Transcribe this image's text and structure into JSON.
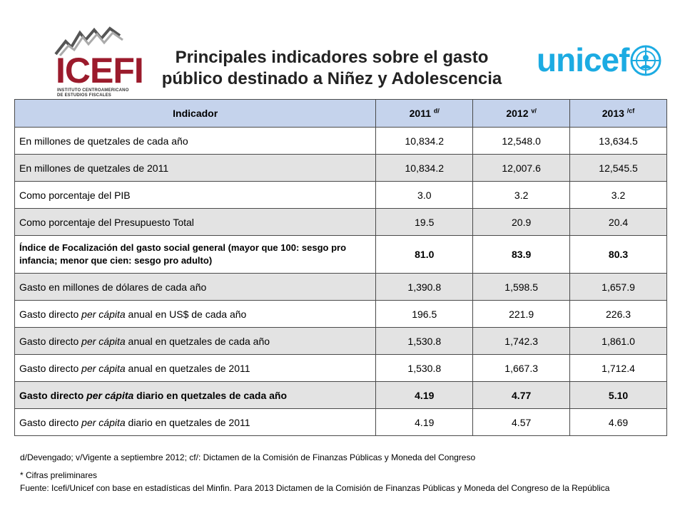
{
  "title": {
    "line1": "Principales indicadores sobre el gasto",
    "line2": "público destinado a Niñez y Adolescencia"
  },
  "logos": {
    "icefi_word": "ICEFI",
    "icefi_sub_line1": "INSTITUTO CENTROAMERICANO",
    "icefi_sub_line2": "DE ESTUDIOS FISCALES",
    "unicef_word": "unicef",
    "icefi_color": "#9b1b2c",
    "unicef_color": "#1cabe2"
  },
  "table": {
    "header": {
      "indicator": "Indicador",
      "y2011": "2011",
      "y2011_sup": "d/",
      "y2012": "2012",
      "y2012_sup": "v/",
      "y2013": "2013",
      "y2013_sup": "/cf"
    },
    "rows": [
      {
        "pre": "En millones de quetzales de cada año",
        "v2011": "10,834.2",
        "v2012": "12,548.0",
        "v2013": "13,634.5"
      },
      {
        "pre": "En millones de quetzales de 2011",
        "v2011": "10,834.2",
        "v2012": "12,007.6",
        "v2013": "12,545.5"
      },
      {
        "pre": "Como porcentaje del PIB",
        "v2011": "3.0",
        "v2012": "3.2",
        "v2013": "3.2"
      },
      {
        "pre": "Como porcentaje del Presupuesto Total",
        "v2011": "19.5",
        "v2012": "20.9",
        "v2013": "20.4"
      },
      {
        "pre": "Índice de Focalización del gasto social general (mayor que 100: sesgo pro infancia; menor que cien: sesgo pro adulto)",
        "v2011": "81.0",
        "v2012": "83.9",
        "v2013": "80.3"
      },
      {
        "pre": "Gasto en millones de dólares de cada año",
        "v2011": "1,390.8",
        "v2012": "1,598.5",
        "v2013": "1,657.9"
      },
      {
        "pre": "Gasto directo ",
        "em": "per cápita",
        "post": " anual en US$ de cada año",
        "v2011": "196.5",
        "v2012": "221.9",
        "v2013": "226.3"
      },
      {
        "pre": "Gasto directo ",
        "em": "per cápita",
        "post": " anual en quetzales de cada año",
        "v2011": "1,530.8",
        "v2012": "1,742.3",
        "v2013": "1,861.0"
      },
      {
        "pre": "Gasto directo ",
        "em": "per cápita",
        "post": " anual en quetzales de 2011",
        "v2011": "1,530.8",
        "v2012": "1,667.3",
        "v2013": "1,712.4"
      },
      {
        "pre": "Gasto directo ",
        "em": "per cápita",
        "post": " diario en quetzales de cada año",
        "v2011": "4.19",
        "v2012": "4.77",
        "v2013": "5.10"
      },
      {
        "pre": "Gasto directo ",
        "em": "per cápita",
        "post": " diario en quetzales de 2011",
        "v2011": "4.19",
        "v2012": "4.57",
        "v2013": "4.69"
      }
    ]
  },
  "footnotes": {
    "line1": "d/Devengado; v/Vigente a septiembre 2012; cf/: Dictamen de la Comisión de Finanzas Públicas y Moneda del Congreso",
    "line2": "* Cifras preliminares",
    "line3": "Fuente: Icefi/Unicef con base en estadísticas del Minfin.  Para 2013 Dictamen de la Comisión de Finanzas Públicas y Moneda del Congreso de la República"
  },
  "colors": {
    "header_bg": "#c5d3ec",
    "shaded_row_bg": "#e3e3e3"
  }
}
